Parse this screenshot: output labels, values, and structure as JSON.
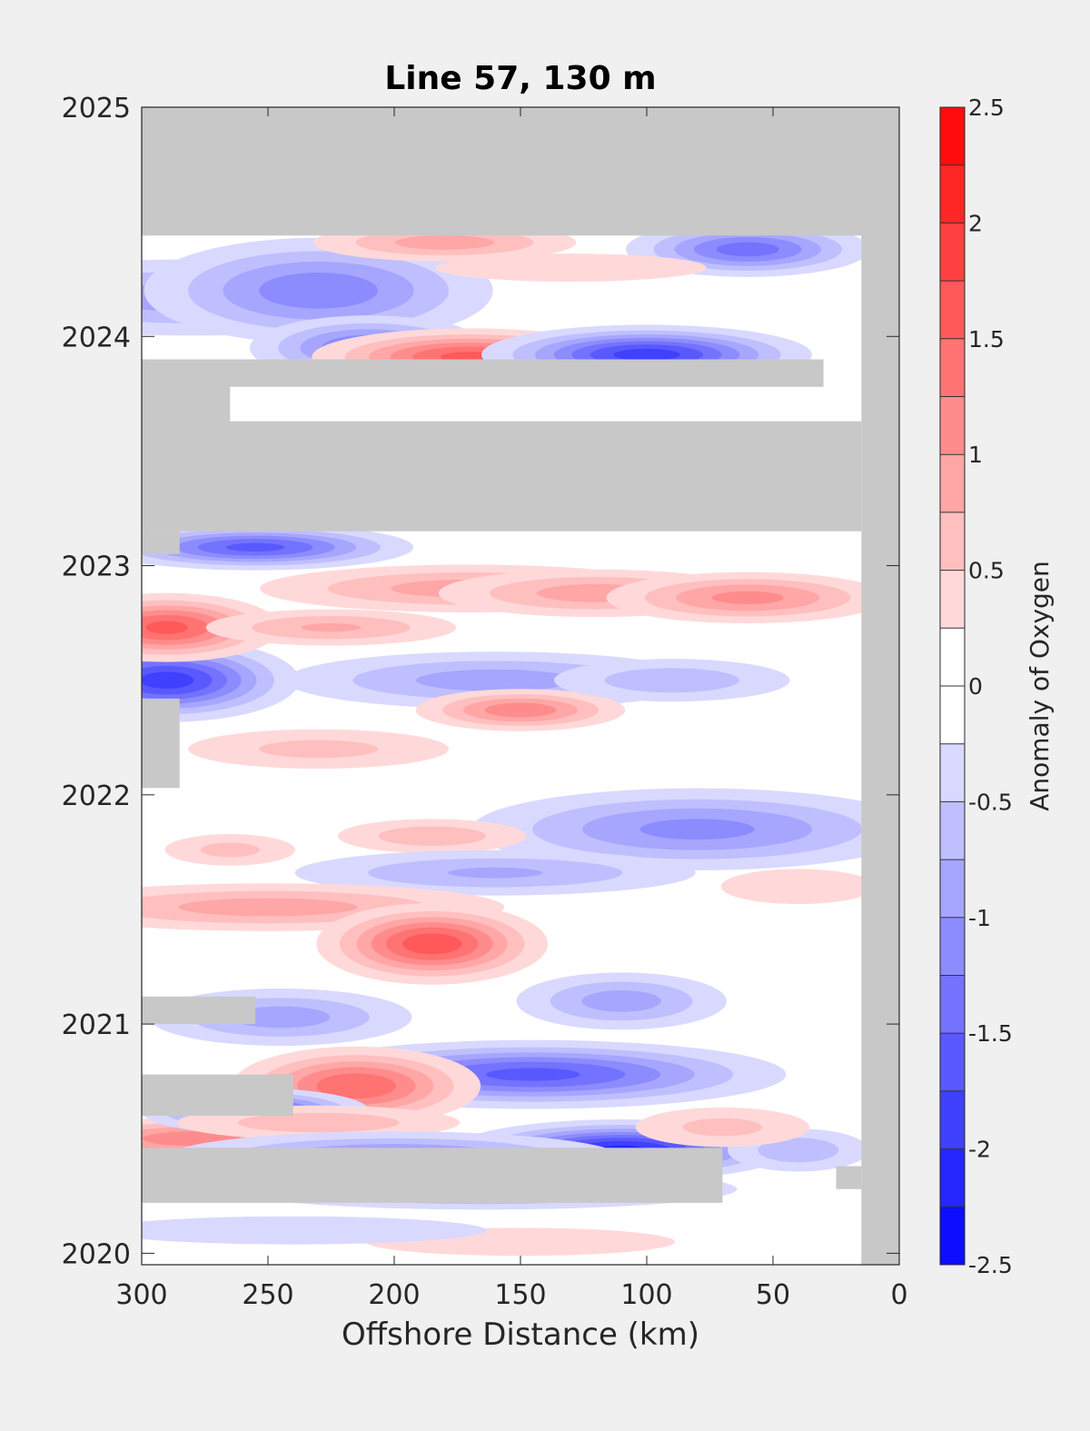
{
  "chart_data": {
    "type": "heatmap",
    "title": "Line 57, 130 m",
    "xlabel": "Offshore Distance (km)",
    "ylabel": "",
    "xlim": [
      300,
      0
    ],
    "ylim": [
      2019.95,
      2025
    ],
    "x_reversed": true,
    "x_ticks": [
      300,
      250,
      200,
      150,
      100,
      50,
      0
    ],
    "y_ticks": [
      2020,
      2021,
      2022,
      2023,
      2024,
      2025
    ],
    "grid": false,
    "colorbar": {
      "label": "Anomaly of Oxygen",
      "min": -2.5,
      "max": 2.5,
      "levels": [
        -2.5,
        -2.25,
        -2,
        -1.75,
        -1.5,
        -1.25,
        -1,
        -0.75,
        -0.5,
        -0.25,
        0,
        0.25,
        0.5,
        0.75,
        1,
        1.25,
        1.5,
        1.75,
        2,
        2.25,
        2.5
      ],
      "ticks": [
        "2.5",
        "2",
        "1.5",
        "1",
        "0.5",
        "0",
        "-0.5",
        "-1",
        "-1.5",
        "-2",
        "-2.5"
      ],
      "colormap": "blue-white-red"
    },
    "no_data_color": "#c8c8c8",
    "no_data_regions": [
      {
        "x": [
          300,
          0
        ],
        "y": [
          2024.44,
          2025
        ]
      },
      {
        "x": [
          15,
          0
        ],
        "y": [
          2019.95,
          2025
        ]
      },
      {
        "x": [
          300,
          30
        ],
        "y": [
          2023.78,
          2023.9
        ]
      },
      {
        "x": [
          300,
          265
        ],
        "y": [
          2023.62,
          2023.9
        ]
      },
      {
        "x": [
          300,
          15
        ],
        "y": [
          2023.15,
          2023.63
        ]
      },
      {
        "x": [
          300,
          285
        ],
        "y": [
          2023.05,
          2023.15
        ]
      },
      {
        "x": [
          300,
          285
        ],
        "y": [
          2022.03,
          2022.42
        ]
      },
      {
        "x": [
          300,
          255
        ],
        "y": [
          2021.0,
          2021.12
        ]
      },
      {
        "x": [
          300,
          240
        ],
        "y": [
          2020.6,
          2020.78
        ]
      },
      {
        "x": [
          300,
          70
        ],
        "y": [
          2020.22,
          2020.46
        ]
      },
      {
        "x": [
          25,
          15
        ],
        "y": [
          2020.28,
          2020.38
        ]
      }
    ],
    "features": [
      {
        "x": 290,
        "y": 2022.5,
        "v": -1.9,
        "sx": 20,
        "sy": 0.07
      },
      {
        "x": 290,
        "y": 2022.73,
        "v": 1.6,
        "sx": 18,
        "sy": 0.06
      },
      {
        "x": 280,
        "y": 2024.17,
        "v": -0.9,
        "sx": 45,
        "sy": 0.08
      },
      {
        "x": 230,
        "y": 2024.2,
        "v": -1.2,
        "sx": 30,
        "sy": 0.1
      },
      {
        "x": 210,
        "y": 2023.95,
        "v": -1.3,
        "sx": 20,
        "sy": 0.06
      },
      {
        "x": 180,
        "y": 2024.41,
        "v": 0.9,
        "sx": 25,
        "sy": 0.04
      },
      {
        "x": 170,
        "y": 2023.91,
        "v": 1.6,
        "sx": 25,
        "sy": 0.05
      },
      {
        "x": 100,
        "y": 2023.92,
        "v": -1.9,
        "sx": 25,
        "sy": 0.05
      },
      {
        "x": 60,
        "y": 2024.38,
        "v": -1.4,
        "sx": 20,
        "sy": 0.05
      },
      {
        "x": 130,
        "y": 2024.3,
        "v": 0.5,
        "sx": 35,
        "sy": 0.04
      },
      {
        "x": 255,
        "y": 2023.08,
        "v": -1.6,
        "sx": 25,
        "sy": 0.04
      },
      {
        "x": 170,
        "y": 2022.9,
        "v": 0.9,
        "sx": 40,
        "sy": 0.05
      },
      {
        "x": 120,
        "y": 2022.88,
        "v": 0.9,
        "sx": 30,
        "sy": 0.05
      },
      {
        "x": 60,
        "y": 2022.86,
        "v": 1.1,
        "sx": 25,
        "sy": 0.05
      },
      {
        "x": 225,
        "y": 2022.73,
        "v": 0.8,
        "sx": 25,
        "sy": 0.04
      },
      {
        "x": 160,
        "y": 2022.5,
        "v": -0.9,
        "sx": 40,
        "sy": 0.06
      },
      {
        "x": 150,
        "y": 2022.37,
        "v": 1.2,
        "sx": 18,
        "sy": 0.04
      },
      {
        "x": 90,
        "y": 2022.5,
        "v": -0.7,
        "sx": 25,
        "sy": 0.05
      },
      {
        "x": 230,
        "y": 2022.2,
        "v": 0.6,
        "sx": 30,
        "sy": 0.05
      },
      {
        "x": 80,
        "y": 2021.85,
        "v": -1.1,
        "sx": 40,
        "sy": 0.08
      },
      {
        "x": 185,
        "y": 2021.82,
        "v": 0.7,
        "sx": 20,
        "sy": 0.04
      },
      {
        "x": 265,
        "y": 2021.76,
        "v": 0.6,
        "sx": 15,
        "sy": 0.04
      },
      {
        "x": 160,
        "y": 2021.66,
        "v": -0.8,
        "sx": 40,
        "sy": 0.05
      },
      {
        "x": 250,
        "y": 2021.51,
        "v": 0.9,
        "sx": 45,
        "sy": 0.05
      },
      {
        "x": 185,
        "y": 2021.35,
        "v": 1.7,
        "sx": 18,
        "sy": 0.07
      },
      {
        "x": 110,
        "y": 2021.1,
        "v": -0.9,
        "sx": 20,
        "sy": 0.06
      },
      {
        "x": 245,
        "y": 2021.03,
        "v": -0.9,
        "sx": 25,
        "sy": 0.06
      },
      {
        "x": 145,
        "y": 2020.78,
        "v": -1.6,
        "sx": 40,
        "sy": 0.06
      },
      {
        "x": 215,
        "y": 2020.73,
        "v": 1.5,
        "sx": 20,
        "sy": 0.07
      },
      {
        "x": 110,
        "y": 2020.45,
        "v": -2.1,
        "sx": 25,
        "sy": 0.05
      },
      {
        "x": 280,
        "y": 2020.5,
        "v": 1.2,
        "sx": 25,
        "sy": 0.04
      },
      {
        "x": 255,
        "y": 2020.62,
        "v": -1.6,
        "sx": 18,
        "sy": 0.04
      },
      {
        "x": 230,
        "y": 2020.57,
        "v": 0.7,
        "sx": 30,
        "sy": 0.04
      },
      {
        "x": 200,
        "y": 2020.42,
        "v": -1.1,
        "sx": 40,
        "sy": 0.05
      },
      {
        "x": 165,
        "y": 2020.28,
        "v": -1.1,
        "sx": 45,
        "sy": 0.04
      },
      {
        "x": 40,
        "y": 2020.45,
        "v": -0.7,
        "sx": 15,
        "sy": 0.05
      },
      {
        "x": 70,
        "y": 2020.55,
        "v": 0.6,
        "sx": 20,
        "sy": 0.05
      },
      {
        "x": 150,
        "y": 2020.05,
        "v": 0.5,
        "sx": 40,
        "sy": 0.04
      },
      {
        "x": 240,
        "y": 2020.1,
        "v": -0.5,
        "sx": 50,
        "sy": 0.04
      },
      {
        "x": 40,
        "y": 2021.6,
        "v": 0.5,
        "sx": 20,
        "sy": 0.05
      }
    ]
  }
}
